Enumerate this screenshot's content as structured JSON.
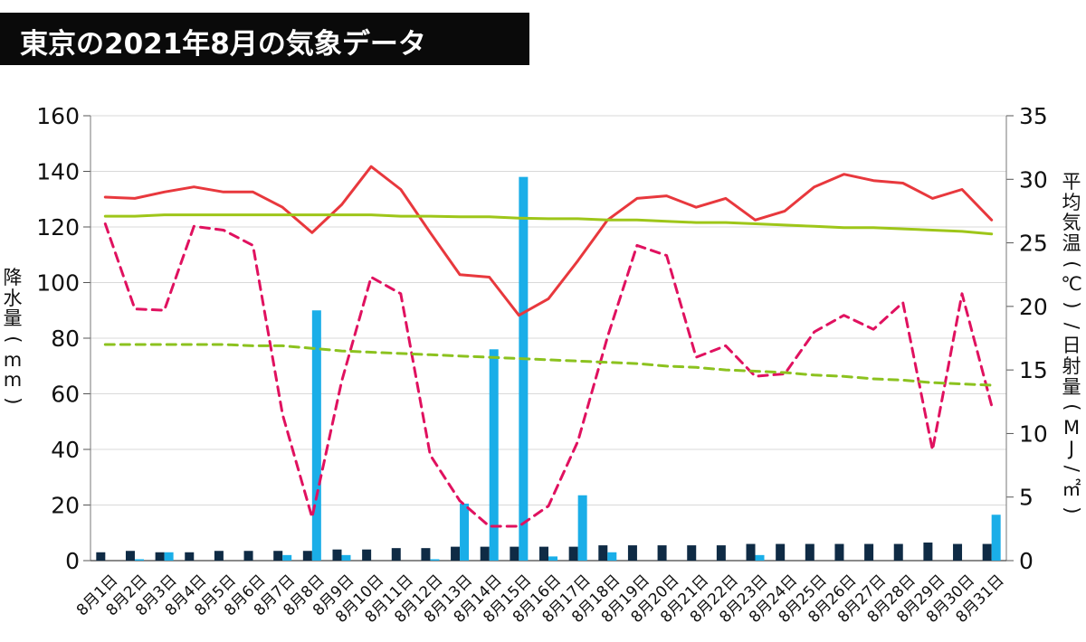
{
  "title": "東京の2021年8月の気象データ",
  "chart_data": {
    "type": "bar+line",
    "title": "東京の2021年8月の気象データ",
    "ylabel_left": "降水量(mm)",
    "ylabel_right": "平均気温(℃) / 日射量(MJ/㎡)",
    "ylim_left": [
      0,
      160
    ],
    "ylim_right": [
      0,
      35
    ],
    "yticks_left": [
      0,
      20,
      40,
      60,
      80,
      100,
      120,
      140,
      160
    ],
    "yticks_right": [
      0,
      5,
      10,
      15,
      20,
      25,
      30,
      35
    ],
    "grid": true,
    "categories": [
      "8月1日",
      "8月2日",
      "8月3日",
      "8月4日",
      "8月5日",
      "8月6日",
      "8月7日",
      "8月8日",
      "8月9日",
      "8月10日",
      "8月11日",
      "8月12日",
      "8月13日",
      "8月14日",
      "8月15日",
      "8月16日",
      "8月17日",
      "8月18日",
      "8月19日",
      "8月20日",
      "8月21日",
      "8月22日",
      "8月23日",
      "8月24日",
      "8月25日",
      "8月26日",
      "8月27日",
      "8月28日",
      "8月29日",
      "8月30日",
      "8月31日"
    ],
    "series": [
      {
        "type": "bar",
        "axis": "left",
        "color": "#0f2b45",
        "values": [
          3,
          3.5,
          3,
          3,
          3.5,
          3.5,
          3.5,
          3.5,
          4,
          4,
          4.5,
          4.5,
          5,
          5,
          5,
          5,
          5,
          5.5,
          5.5,
          5.5,
          5.5,
          5.5,
          6,
          6,
          6,
          6,
          6,
          6,
          6.5,
          6,
          6
        ]
      },
      {
        "type": "bar",
        "axis": "left",
        "color": "#1aaee8",
        "values": [
          0,
          0.5,
          3,
          0,
          0,
          0,
          2,
          90,
          2,
          0,
          0,
          0.5,
          20.5,
          76,
          138,
          1.5,
          23.5,
          3,
          0,
          0,
          0,
          0,
          2,
          0,
          0,
          0,
          0,
          0,
          0,
          0,
          16.5
        ]
      },
      {
        "type": "line",
        "axis": "right",
        "color": "#e8383d",
        "style": "solid",
        "values": [
          28.6,
          28.5,
          29,
          29.4,
          29,
          29,
          27.8,
          25.8,
          28,
          31,
          29.2,
          25.8,
          22.5,
          22.3,
          19.3,
          20.6,
          23.6,
          26.8,
          28.5,
          28.7,
          27.8,
          28.5,
          26.8,
          27.5,
          29.4,
          30.4,
          29.9,
          29.7,
          28.5,
          29.2,
          26.8
        ]
      },
      {
        "type": "line",
        "axis": "right",
        "color": "#9ec619",
        "style": "solid",
        "values": [
          27.1,
          27.1,
          27.2,
          27.2,
          27.2,
          27.2,
          27.2,
          27.2,
          27.2,
          27.2,
          27.1,
          27.1,
          27.05,
          27.05,
          26.95,
          26.9,
          26.9,
          26.8,
          26.8,
          26.7,
          26.6,
          26.6,
          26.5,
          26.4,
          26.3,
          26.2,
          26.2,
          26.1,
          26,
          25.9,
          25.7
        ]
      },
      {
        "type": "line",
        "axis": "right",
        "color": "#e0115f",
        "style": "dashed",
        "values": [
          26.5,
          19.8,
          19.7,
          26.3,
          26,
          24.8,
          11.5,
          3.4,
          14.1,
          22.3,
          21,
          8.3,
          4.7,
          2.7,
          2.7,
          4.3,
          9.4,
          17.6,
          24.8,
          24,
          16,
          16.9,
          14.5,
          14.7,
          18,
          19.3,
          18.2,
          20.3,
          8.7,
          21,
          12.2
        ]
      },
      {
        "type": "line",
        "axis": "right",
        "color": "#8cc21f",
        "style": "dashed",
        "values": [
          17,
          17,
          17,
          17,
          17,
          16.9,
          16.9,
          16.7,
          16.5,
          16.4,
          16.3,
          16.2,
          16.1,
          16,
          15.9,
          15.8,
          15.7,
          15.6,
          15.5,
          15.3,
          15.2,
          15,
          14.9,
          14.8,
          14.6,
          14.5,
          14.3,
          14.2,
          14,
          13.9,
          13.8
        ]
      }
    ]
  }
}
